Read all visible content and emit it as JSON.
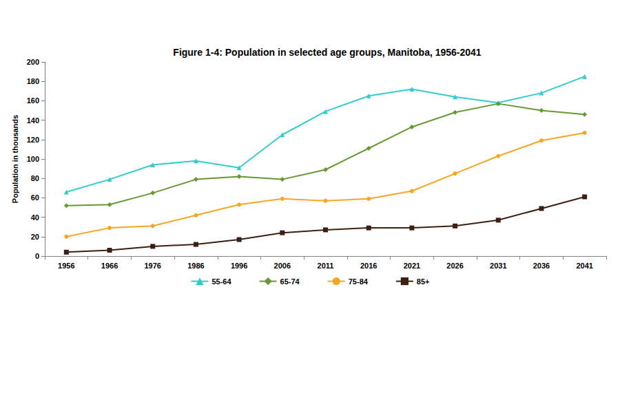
{
  "chart_data": {
    "type": "line",
    "title": "Figure 1-4: Population in selected age groups, Manitoba, 1956-2041",
    "y_label": "Population in thousands",
    "categories": [
      "1956",
      "1966",
      "1976",
      "1986",
      "1996",
      "2006",
      "2011",
      "2016",
      "2021",
      "2026",
      "2031",
      "2036",
      "2041"
    ],
    "series": [
      {
        "name": "55-64",
        "color": "#33cccc",
        "marker": "triangle",
        "line_style": "solid",
        "values": [
          66,
          79,
          94,
          98,
          91,
          125,
          149,
          165,
          172,
          164,
          158,
          168,
          185
        ]
      },
      {
        "name": "65-74",
        "color": "#669933",
        "marker": "diamond",
        "line_style": "solid",
        "values": [
          52,
          53,
          65,
          79,
          82,
          79,
          89,
          111,
          133,
          148,
          157,
          150,
          146
        ]
      },
      {
        "name": "75-84",
        "color": "#f5a623",
        "marker": "circle",
        "line_style": "solid",
        "values": [
          20,
          29,
          31,
          42,
          53,
          59,
          57,
          59,
          67,
          85,
          103,
          119,
          127
        ]
      },
      {
        "name": "85+",
        "color": "#3d1e12",
        "marker": "square",
        "line_style": "solid",
        "values": [
          4,
          6,
          10,
          12,
          17,
          24,
          27,
          29,
          29,
          31,
          37,
          49,
          61
        ]
      }
    ],
    "ylim": [
      0,
      200
    ],
    "yticks": [
      0,
      20,
      40,
      60,
      80,
      100,
      120,
      140,
      160,
      180,
      200
    ],
    "grid": false,
    "legend": "bottom"
  }
}
